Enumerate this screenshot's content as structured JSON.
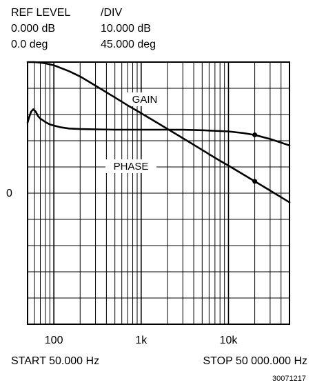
{
  "header": {
    "ref_level_title": "REF LEVEL",
    "div_title": "/DIV",
    "gain_ref": "0.000 dB",
    "gain_div": "10.000 dB",
    "phase_ref": "0.0 deg",
    "phase_div": "45.000 deg"
  },
  "footer": {
    "start": "START  50.000 Hz",
    "stop": "STOP  50 000.000 Hz",
    "figure_id": "30071217"
  },
  "chart_data": {
    "type": "line",
    "xscale": "log",
    "xlim": [
      50,
      50000
    ],
    "x_ticks": [
      {
        "value": 100,
        "label": "100"
      },
      {
        "value": 1000,
        "label": "1k"
      },
      {
        "value": 10000,
        "label": "10k"
      }
    ],
    "y_ref_label": "0",
    "y_divisions": 10,
    "y_ref_division": 5,
    "grid": true,
    "series": [
      {
        "name": "GAIN",
        "unit": "dB",
        "per_div": 10,
        "x": [
          50,
          60,
          70,
          80,
          100,
          150,
          200,
          300,
          500,
          700,
          1000,
          1500,
          2000,
          3000,
          5000,
          7000,
          10000,
          15000,
          20000,
          30000,
          50000
        ],
        "y": [
          50,
          50,
          49.8,
          49.5,
          48.8,
          46.5,
          44.5,
          41,
          36.5,
          33.5,
          30.5,
          27,
          24.5,
          21,
          16.5,
          13.5,
          10.5,
          7,
          4.5,
          1,
          -3.5
        ],
        "markers_at": [
          20000
        ]
      },
      {
        "name": "PHASE",
        "unit": "deg",
        "per_div": 45,
        "x": [
          50,
          52,
          55,
          58,
          62,
          66,
          70,
          75,
          80,
          90,
          100,
          120,
          150,
          200,
          300,
          500,
          1000,
          2000,
          3000,
          5000,
          10000,
          15000,
          20000,
          30000,
          50000
        ],
        "y": [
          121,
          130,
          140,
          144,
          140,
          132,
          128,
          125,
          122,
          118,
          116,
          113,
          111,
          110,
          109.5,
          109,
          109,
          109,
          108.8,
          108,
          106,
          103,
          100,
          93,
          82
        ],
        "markers_at": [
          20000
        ]
      }
    ]
  }
}
